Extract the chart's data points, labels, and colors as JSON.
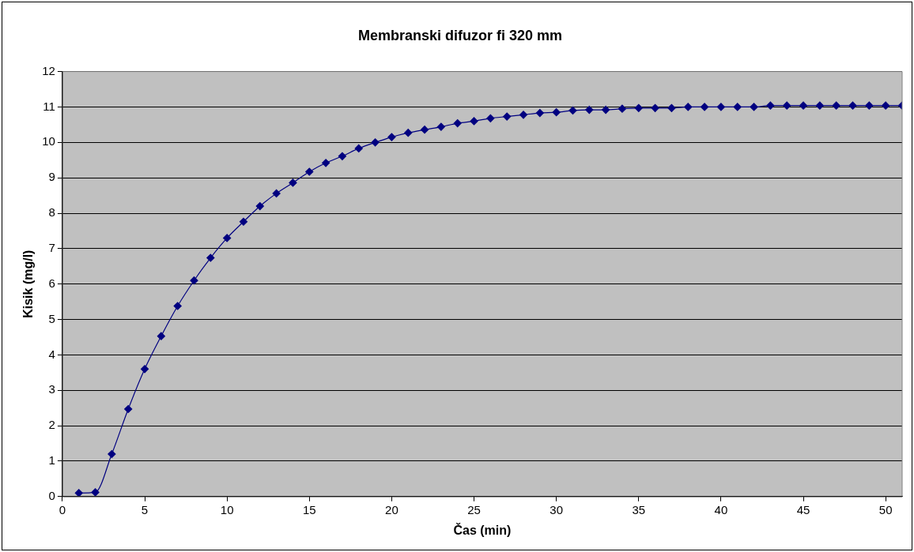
{
  "chart_data": {
    "type": "line",
    "title": "Membranski difuzor fi 320 mm",
    "xlabel": "Čas (min)",
    "ylabel": "Kisik (mg/l)",
    "x": [
      1,
      2,
      3,
      4,
      5,
      6,
      7,
      8,
      9,
      10,
      11,
      12,
      13,
      14,
      15,
      16,
      17,
      18,
      19,
      20,
      21,
      22,
      23,
      24,
      25,
      26,
      27,
      28,
      29,
      30,
      31,
      32,
      33,
      34,
      35,
      36,
      37,
      38,
      39,
      40,
      41,
      42,
      43,
      44,
      45,
      46,
      47,
      48,
      49,
      50,
      51
    ],
    "series": [
      {
        "color": "#000080",
        "values": [
          0.1,
          0.12,
          1.2,
          2.47,
          3.6,
          4.53,
          5.38,
          6.1,
          6.74,
          7.3,
          7.76,
          8.2,
          8.56,
          8.86,
          9.17,
          9.42,
          9.61,
          9.83,
          10.0,
          10.15,
          10.27,
          10.36,
          10.44,
          10.54,
          10.6,
          10.68,
          10.73,
          10.78,
          10.83,
          10.85,
          10.9,
          10.92,
          10.92,
          10.95,
          10.97,
          10.97,
          10.97,
          11.0,
          11.0,
          11.0,
          11.0,
          11.0,
          11.04,
          11.04,
          11.04,
          11.04,
          11.04,
          11.04,
          11.04,
          11.04,
          11.04
        ]
      }
    ],
    "xlim": [
      0,
      51
    ],
    "xticks": [
      0,
      5,
      10,
      15,
      20,
      25,
      30,
      35,
      40,
      45,
      50
    ],
    "ylim": [
      0,
      12
    ],
    "yticks": [
      0,
      1,
      2,
      3,
      4,
      5,
      6,
      7,
      8,
      9,
      10,
      11,
      12
    ],
    "grid": "y",
    "legend": false,
    "marker": "diamond",
    "line_style": "solid"
  }
}
